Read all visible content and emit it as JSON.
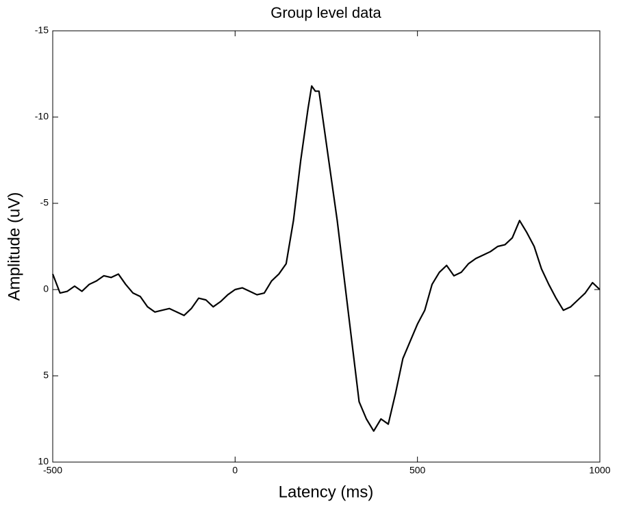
{
  "chart_data": {
    "type": "line",
    "title": "Group level data",
    "x_label": "Latency (ms)",
    "y_label": "Amplitude (uV)",
    "x": [
      -500,
      -480,
      -460,
      -440,
      -420,
      -400,
      -380,
      -360,
      -340,
      -320,
      -300,
      -280,
      -260,
      -240,
      -220,
      -200,
      -180,
      -160,
      -140,
      -120,
      -100,
      -80,
      -60,
      -40,
      -20,
      0,
      20,
      40,
      60,
      80,
      100,
      120,
      140,
      160,
      180,
      200,
      210,
      220,
      230,
      240,
      260,
      280,
      300,
      320,
      340,
      360,
      380,
      400,
      420,
      440,
      460,
      480,
      500,
      520,
      540,
      560,
      580,
      600,
      620,
      640,
      660,
      680,
      700,
      720,
      740,
      760,
      780,
      800,
      820,
      840,
      860,
      880,
      900,
      920,
      940,
      960,
      980,
      1000
    ],
    "series": [
      {
        "name": "Group level data",
        "color": "#000000",
        "values": [
          -0.9,
          0.2,
          0.1,
          -0.2,
          0.1,
          -0.3,
          -0.5,
          -0.8,
          -0.7,
          -0.9,
          -0.3,
          0.2,
          0.4,
          1.0,
          1.3,
          1.2,
          1.1,
          1.3,
          1.5,
          1.1,
          0.5,
          0.6,
          1.0,
          0.7,
          0.3,
          0.0,
          -0.1,
          0.1,
          0.3,
          0.2,
          -0.5,
          -0.9,
          -1.5,
          -4,
          -7.5,
          -10.5,
          -11.8,
          -11.5,
          -11.5,
          -10,
          -7,
          -4,
          -0.5,
          3,
          6.5,
          7.5,
          8.2,
          7.5,
          7.8,
          6,
          4,
          3,
          2,
          1.2,
          -0.3,
          -1.0,
          -1.4,
          -0.8,
          -1.0,
          -1.5,
          -1.8,
          -2.0,
          -2.2,
          -2.5,
          -2.6,
          -3.0,
          -4.0,
          -3.3,
          -2.5,
          -1.2,
          -0.3,
          0.5,
          1.2,
          1.0,
          0.6,
          0.2,
          -0.4,
          0.0
        ]
      }
    ],
    "xlim": [
      -500,
      1000
    ],
    "xticks": [
      -500,
      0,
      500,
      1000
    ],
    "ylim": [
      -15,
      10
    ],
    "yticks": [
      -15,
      -10,
      -5,
      0,
      5,
      10
    ],
    "y_reversed": true,
    "grid": false
  }
}
